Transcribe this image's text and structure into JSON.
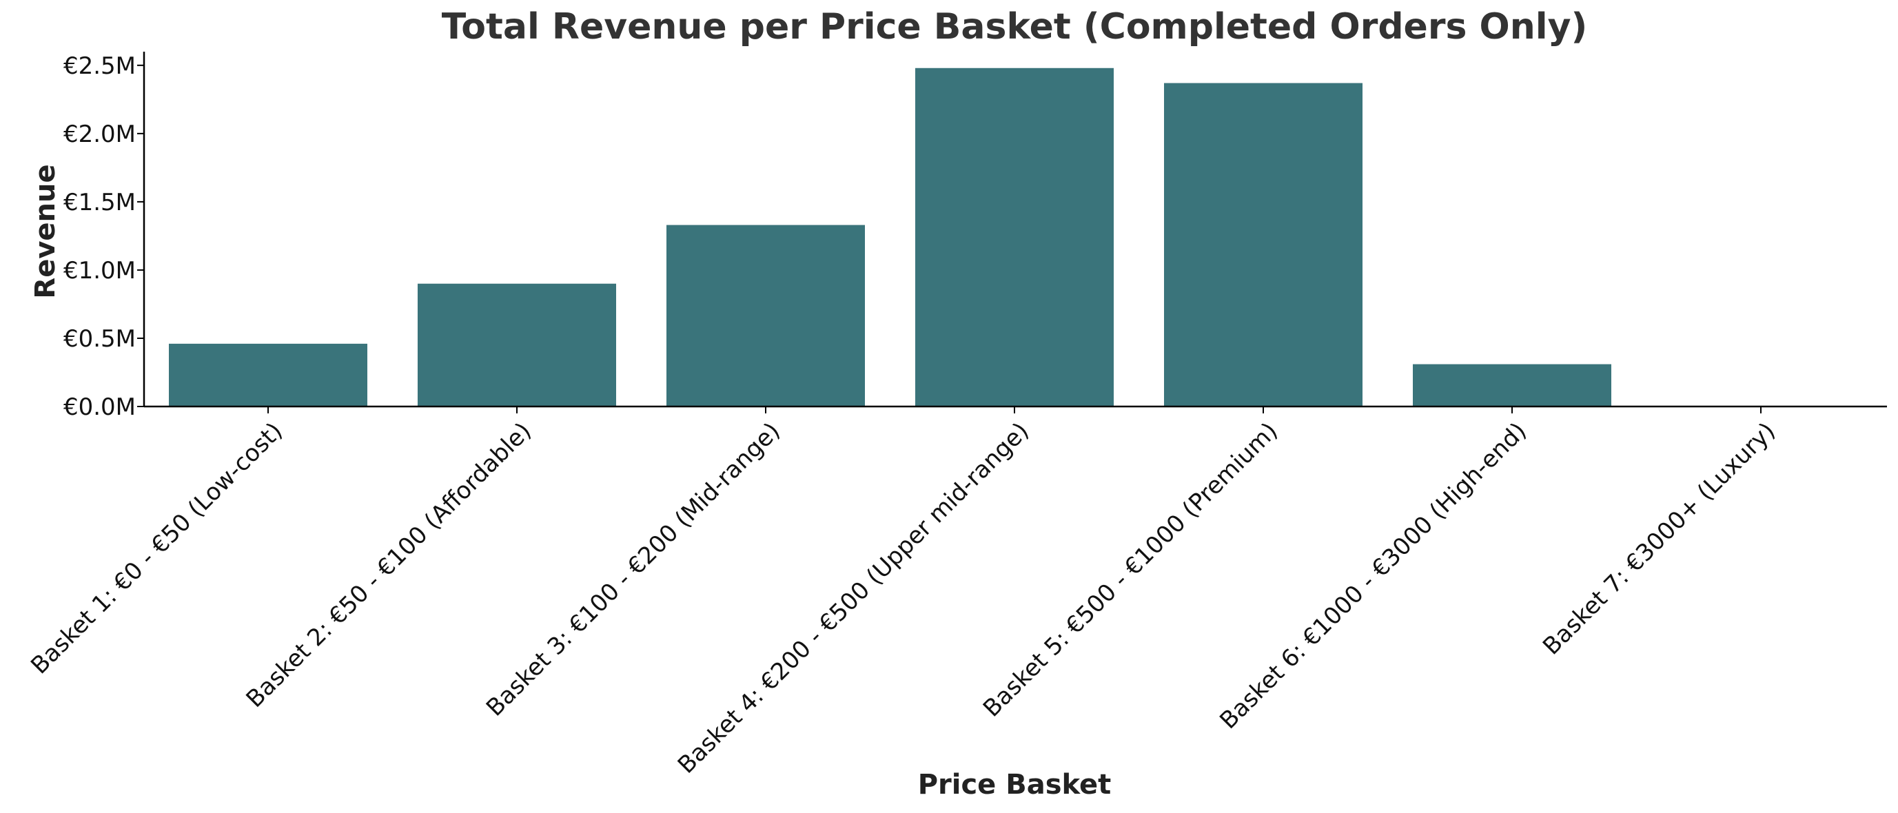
{
  "chart_data": {
    "type": "bar",
    "title": "Total Revenue per Price Basket (Completed Orders Only)",
    "xlabel": "Price Basket",
    "ylabel": "Revenue",
    "categories": [
      "Basket 1: €0 - €50 (Low-cost)",
      "Basket 2: €50 - €100 (Affordable)",
      "Basket 3: €100 - €200 (Mid-range)",
      "Basket 4: €200 - €500 (Upper mid-range)",
      "Basket 5: €500 - €1000 (Premium)",
      "Basket 6: €1000 - €3000 (High-end)",
      "Basket 7: €3000+ (Luxury)"
    ],
    "values": [
      460000,
      900000,
      1330000,
      2480000,
      2370000,
      310000,
      0
    ],
    "ylim": [
      0,
      2600000
    ],
    "yticks": [
      0,
      500000,
      1000000,
      1500000,
      2000000,
      2500000
    ],
    "ytick_labels": [
      "€0.0M",
      "€0.5M",
      "€1.0M",
      "€1.5M",
      "€2.0M",
      "€2.5M"
    ],
    "bar_color": "#3a747b",
    "grid": false,
    "legend": "none"
  }
}
